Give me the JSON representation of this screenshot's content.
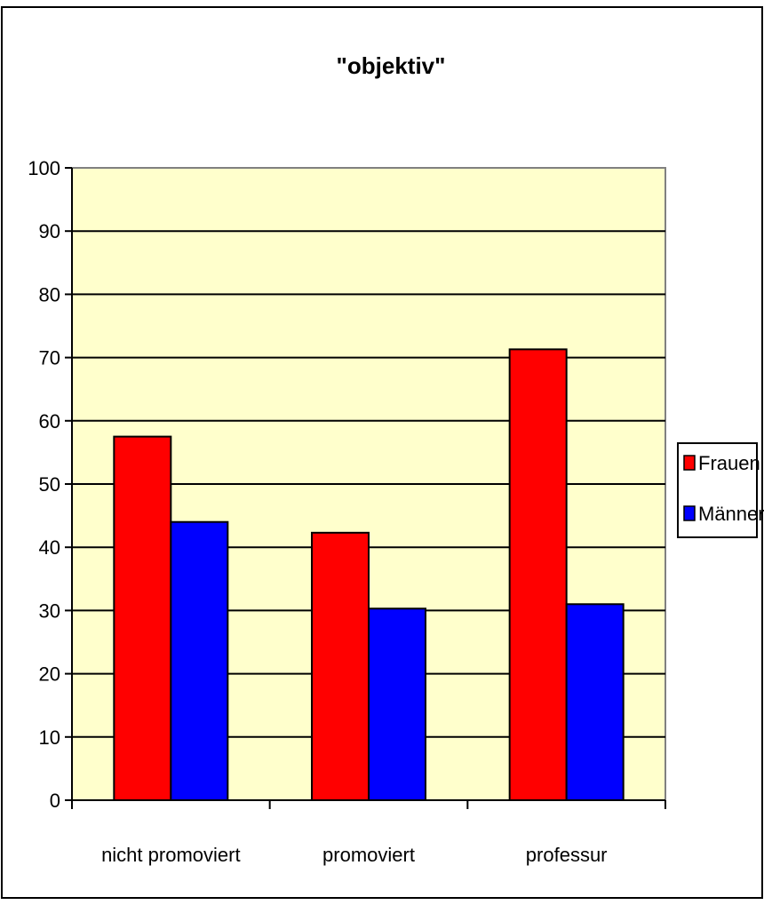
{
  "chart_data": {
    "type": "bar",
    "title": "\"objektiv\"",
    "xlabel": "",
    "ylabel": "",
    "categories": [
      "nicht promoviert",
      "promoviert",
      "professur"
    ],
    "series": [
      {
        "name": "Frauen",
        "color": "#ff0000",
        "values": [
          57.5,
          42.3,
          71.3
        ]
      },
      {
        "name": "Männer",
        "color": "#0000ff",
        "values": [
          44.0,
          30.3,
          31.0
        ]
      }
    ],
    "ylim": [
      0,
      100
    ],
    "yticks": [
      0,
      10,
      20,
      30,
      40,
      50,
      60,
      70,
      80,
      90,
      100
    ],
    "grid": true,
    "plot_background": "#ffffcc",
    "legend_position": "right"
  }
}
